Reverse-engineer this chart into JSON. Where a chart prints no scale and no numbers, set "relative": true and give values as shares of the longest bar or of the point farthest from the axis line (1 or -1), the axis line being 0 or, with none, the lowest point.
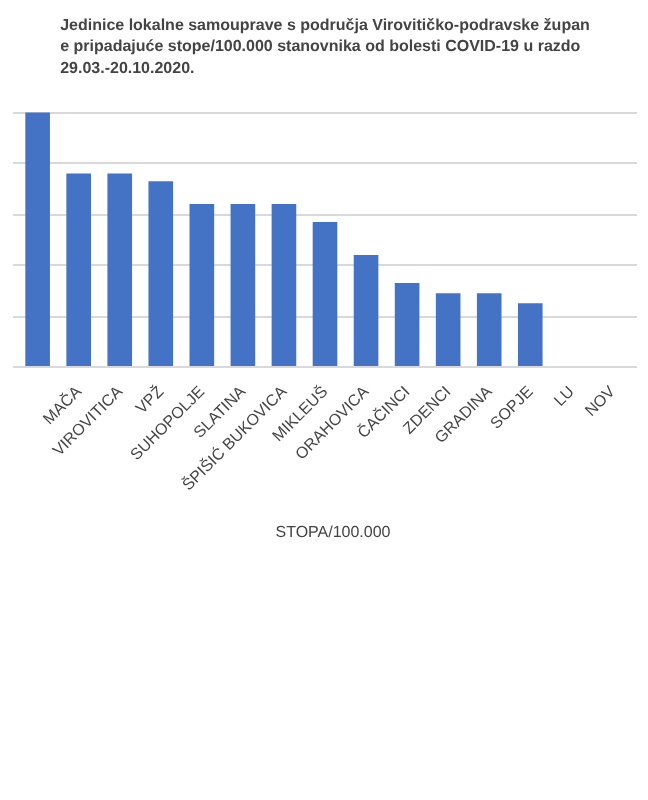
{
  "chart_data": {
    "type": "bar",
    "title": "Jedinice lokalne samouprave s područja Virovitičko-podravske župan\ne pripadajuće stope/100.000 stanovnika od bolesti COVID-19 u razdo\n29.03.-20.10.2020.",
    "categories": [
      null,
      "MAČA",
      "VIROVITICA",
      "VPŽ",
      "SUHOPOLJE",
      "SLATINA",
      "ŠPIŠIĆ BUKOVICA",
      "MIKLEUŠ",
      "ORAHOVICA",
      "ČAČINCI",
      "ZDENCI",
      "GRADINA",
      "SOPJE",
      "LU",
      "NOV"
    ],
    "series": [
      {
        "name": "STOPA/100.000",
        "color": "#4472c4",
        "values": [
          1,
          0.76,
          0.76,
          0.73,
          0.64,
          0.64,
          0.64,
          0.57,
          0.44,
          0.33,
          0.29,
          0.29,
          0.25,
          null,
          null
        ]
      }
    ],
    "relative": true,
    "grid": "y",
    "legend": "bottom"
  }
}
